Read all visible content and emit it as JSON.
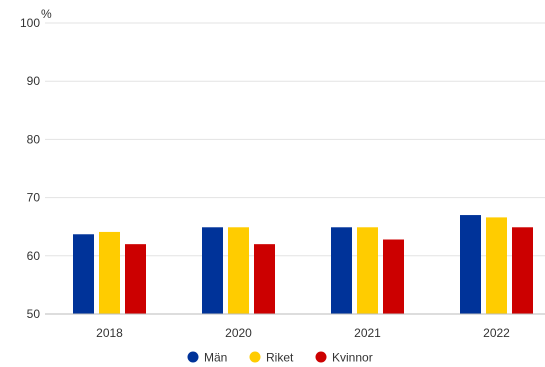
{
  "chart_data": {
    "type": "bar",
    "unit_label": "%",
    "categories": [
      "2018",
      "2020",
      "2021",
      "2022"
    ],
    "series": [
      {
        "name": "Män",
        "color": "#003399",
        "values": [
          63.7,
          64.9,
          64.9,
          67.0
        ]
      },
      {
        "name": "Riket",
        "color": "#FFCC00",
        "values": [
          64.1,
          64.9,
          64.9,
          66.6
        ]
      },
      {
        "name": "Kvinnor",
        "color": "#CC0000",
        "values": [
          62.0,
          62.0,
          62.8,
          64.9
        ]
      }
    ],
    "ylim": [
      50,
      100
    ],
    "yticks": [
      "50",
      "60",
      "70",
      "80",
      "90",
      "100"
    ],
    "grid": true,
    "legend_position": "bottom"
  }
}
